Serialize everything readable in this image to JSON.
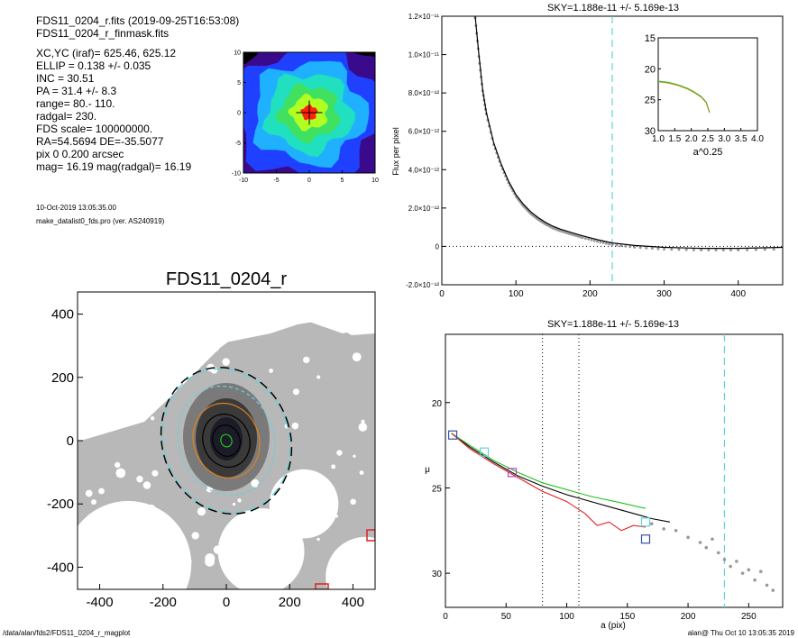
{
  "info": {
    "lines": [
      "FDS11_0204_r.fits  (2019-09-25T16:53:08)",
      "FDS11_0204_r_finmask.fits",
      "XC,YC (iraf)=   625.46, 625.12",
      "ELLIP = 0.138 +/- 0.035",
      "INC   = 30.51",
      "PA    =  31.4 +/-   8.3",
      "range=  80.-  110.",
      "radgal=  230.",
      "FDS scale=  100000000.",
      "RA=54.5694   DE=-35.5077",
      "pix 0 0.200 arcsec",
      "mag=  16.19  mag(radgal)=  16.19"
    ],
    "date": "10-Oct-2019 13:05:35.00",
    "program": "make_datalist0_fds.pro (ver. AS240919)"
  },
  "footer": {
    "left": "/data/alan/fds2/FDS11_0204_r_magplot",
    "right": "alan@  Thu Oct 10 13:05:35 2019"
  },
  "colors": {
    "cyan": "#5fd3e0",
    "grey_points": "#999999",
    "black": "#000000",
    "green": "#22c322",
    "red": "#e02020",
    "magenta": "#c040c0",
    "blue": "#3050b0",
    "orange": "#e08020"
  },
  "chart_data": [
    {
      "type": "heatmap",
      "title": "",
      "xlim": [
        -10,
        10
      ],
      "ylim": [
        -10,
        10
      ],
      "xticks": [
        -10,
        -5,
        0,
        5,
        10
      ],
      "yticks": [
        -10,
        -5,
        0,
        5,
        10
      ],
      "levels": [
        "#3a0a8c",
        "#2040ff",
        "#1fb0ff",
        "#20e0c0",
        "#40e060",
        "#b0ff20",
        "#ff2010"
      ],
      "cross": [
        0,
        0
      ]
    },
    {
      "type": "scatter",
      "title": "FDS11_0204_r",
      "xlim": [
        -470,
        470
      ],
      "ylim": [
        -470,
        470
      ],
      "xticks": [
        -400,
        -200,
        0,
        200,
        400
      ],
      "yticks": [
        -400,
        -200,
        0,
        200,
        400
      ],
      "ellipses_radii": [
        235,
        230,
        175,
        120,
        85,
        50,
        20
      ],
      "ellipse_colors": [
        "#000000",
        "#5fd3e0",
        "#5fd3e0",
        "#e08020",
        "#000000",
        "#000000",
        "#22c322"
      ]
    },
    {
      "type": "line",
      "title": "SKY=1.188e-11 +/- 5.169e-13",
      "ylabel": "Flux per pixel",
      "xlabel": "",
      "xlim": [
        0,
        460
      ],
      "ylim": [
        -2e-12,
        1.2e-11
      ],
      "xticks": [
        0,
        100,
        200,
        300,
        400
      ],
      "ytick_labels": [
        "-2.0×10⁻¹²",
        "0",
        "2.0×10⁻¹²",
        "4.0×10⁻¹²",
        "6.0×10⁻¹²",
        "8.0×10⁻¹²",
        "1.0×10⁻¹¹",
        "1.2×10⁻¹¹"
      ],
      "ytick_values": [
        -2e-12,
        0,
        2e-12,
        4e-12,
        6e-12,
        8e-12,
        1e-11,
        1.2e-11
      ],
      "radgal": 230,
      "series": [
        {
          "x": [
            45,
            50,
            55,
            60,
            70,
            80,
            90,
            100,
            110,
            120,
            130,
            140,
            150,
            160,
            175,
            190,
            210,
            230,
            260,
            300,
            350,
            400,
            460
          ],
          "y": [
            1.2e-11,
            1e-11,
            8.2e-12,
            7e-12,
            5.4e-12,
            4.3e-12,
            3.4e-12,
            2.7e-12,
            2.2e-12,
            1.8e-12,
            1.5e-12,
            1.25e-12,
            1.05e-12,
            9e-13,
            7.2e-13,
            5.5e-13,
            3.5e-13,
            1.8e-13,
            5e-14,
            -5e-14,
            -1e-13,
            -1e-13,
            -5e-14
          ]
        }
      ],
      "inset": {
        "xlabel": "a^0.25",
        "xlim": [
          1.0,
          4.0
        ],
        "ylim": [
          30,
          15
        ],
        "xtick_labels": [
          "1.0",
          "1.5",
          "2.0",
          "2.5",
          "3.0",
          "3.5",
          "4.0"
        ],
        "ytick_labels": [
          "15",
          "20",
          "25",
          "30"
        ],
        "x": [
          1.0,
          1.3,
          1.6,
          1.9,
          2.1,
          2.3,
          2.45,
          2.55
        ],
        "y": [
          22.0,
          22.2,
          22.6,
          23.2,
          23.8,
          24.5,
          25.4,
          27.0
        ]
      }
    },
    {
      "type": "line",
      "title": "SKY=1.188e-11 +/- 5.169e-13",
      "xlabel": "a (pix)",
      "ylabel": "μ",
      "xlim": [
        0,
        278
      ],
      "ylim": [
        32,
        16
      ],
      "xticks": [
        0,
        50,
        100,
        150,
        200,
        250
      ],
      "yticks": [
        20,
        25,
        30
      ],
      "range_lines": [
        80,
        110
      ],
      "radgal": 230,
      "series": [
        {
          "name": "",
          "x": [
            5,
            20,
            40,
            60,
            80,
            100,
            120,
            140,
            160,
            170,
            185
          ],
          "y": [
            21.8,
            22.6,
            23.5,
            24.3,
            24.9,
            25.4,
            25.8,
            26.2,
            26.6,
            26.8,
            27.0
          ]
        },
        {
          "name": "",
          "x": [
            5,
            20,
            40,
            60,
            80,
            100,
            120,
            140,
            165
          ],
          "y": [
            21.8,
            22.5,
            23.4,
            24.1,
            24.7,
            25.1,
            25.5,
            25.8,
            26.2
          ]
        },
        {
          "name": "",
          "x": [
            5,
            20,
            40,
            60,
            80,
            100,
            115,
            125,
            135,
            145,
            155,
            165
          ],
          "y": [
            21.8,
            22.7,
            23.6,
            24.4,
            25.2,
            25.8,
            26.5,
            27.2,
            27.0,
            27.5,
            27.2,
            27.3
          ]
        }
      ],
      "boxes": [
        {
          "x": 6,
          "y": 21.9,
          "color": "#3050b0"
        },
        {
          "x": 32,
          "y": 22.9,
          "color": "#5fd3e0"
        },
        {
          "x": 55,
          "y": 24.1,
          "color": "#c040c0"
        },
        {
          "x": 165,
          "y": 27.0,
          "color": "#5fd3e0"
        },
        {
          "x": 165,
          "y": 28.0,
          "color": "#3050b0"
        }
      ],
      "points_x": [
        170,
        180,
        190,
        200,
        210,
        215,
        220,
        225,
        230,
        235,
        240,
        245,
        250,
        255,
        260,
        265,
        270
      ],
      "points_y": [
        27.1,
        27.4,
        27.5,
        27.9,
        28.2,
        28.5,
        28.0,
        28.8,
        29.2,
        29.6,
        29.3,
        30.0,
        29.8,
        30.4,
        29.9,
        30.7,
        31.0
      ]
    }
  ]
}
